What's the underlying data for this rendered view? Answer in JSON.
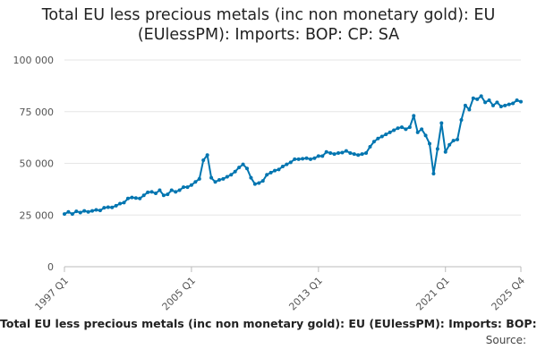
{
  "title_line1": "Total EU less precious metals (inc non monetary gold): EU",
  "title_line2": "(EUlessPM): Imports: BOP: CP: SA",
  "footer": {
    "caption": "Total EU less precious metals (inc non monetary gold): EU (EUlessPM): Imports: BOP: CP: SA",
    "source": "Source: "
  },
  "chart_data": {
    "type": "line",
    "title": "Total EU less precious metals (inc non monetary gold): EU (EUlessPM): Imports: BOP: CP: SA",
    "xlabel": "",
    "ylabel": "",
    "ylim": [
      0,
      100000
    ],
    "y_ticks": [
      0,
      25000,
      50000,
      75000,
      100000
    ],
    "y_tick_labels": [
      "0",
      "25 000",
      "50 000",
      "75 000",
      "100 000"
    ],
    "x_tick_labels": [
      "1997 Q1",
      "2005 Q1",
      "2013 Q1",
      "2021 Q1",
      "2025 Q4"
    ],
    "x_tick_index": [
      0,
      32,
      64,
      96,
      115
    ],
    "grid": "horizontal",
    "legend": "none",
    "color": "#0075b0",
    "series": [
      {
        "values": [
          25500,
          26500,
          25500,
          26800,
          26200,
          27000,
          26500,
          27000,
          27500,
          27200,
          28500,
          28800,
          28700,
          29500,
          30500,
          31000,
          33000,
          33500,
          33200,
          33000,
          34500,
          36000,
          36200,
          35500,
          37000,
          34500,
          35000,
          37000,
          36200,
          37000,
          38500,
          38500,
          39500,
          41000,
          42500,
          51500,
          54000,
          43000,
          41000,
          42000,
          42500,
          43500,
          44500,
          46000,
          48000,
          49500,
          47500,
          43000,
          40000,
          40500,
          41500,
          44500,
          45500,
          46500,
          47000,
          48500,
          49500,
          50500,
          52000,
          52000,
          52200,
          52500,
          52000,
          52500,
          53500,
          53500,
          55500,
          55000,
          54500,
          55000,
          55200,
          56000,
          55000,
          54500,
          54000,
          54500,
          55000,
          58000,
          60500,
          62000,
          63000,
          64000,
          65000,
          66000,
          67000,
          67500,
          66500,
          67500,
          73000,
          65000,
          66500,
          63500,
          59500,
          45000,
          57000,
          69500,
          55500,
          59000,
          61000,
          61500,
          71000,
          78000,
          76000,
          81500,
          81000,
          82500,
          79500,
          80500,
          78000,
          79500,
          77500,
          78000,
          78500,
          79000,
          80500,
          79800
        ]
      }
    ]
  }
}
